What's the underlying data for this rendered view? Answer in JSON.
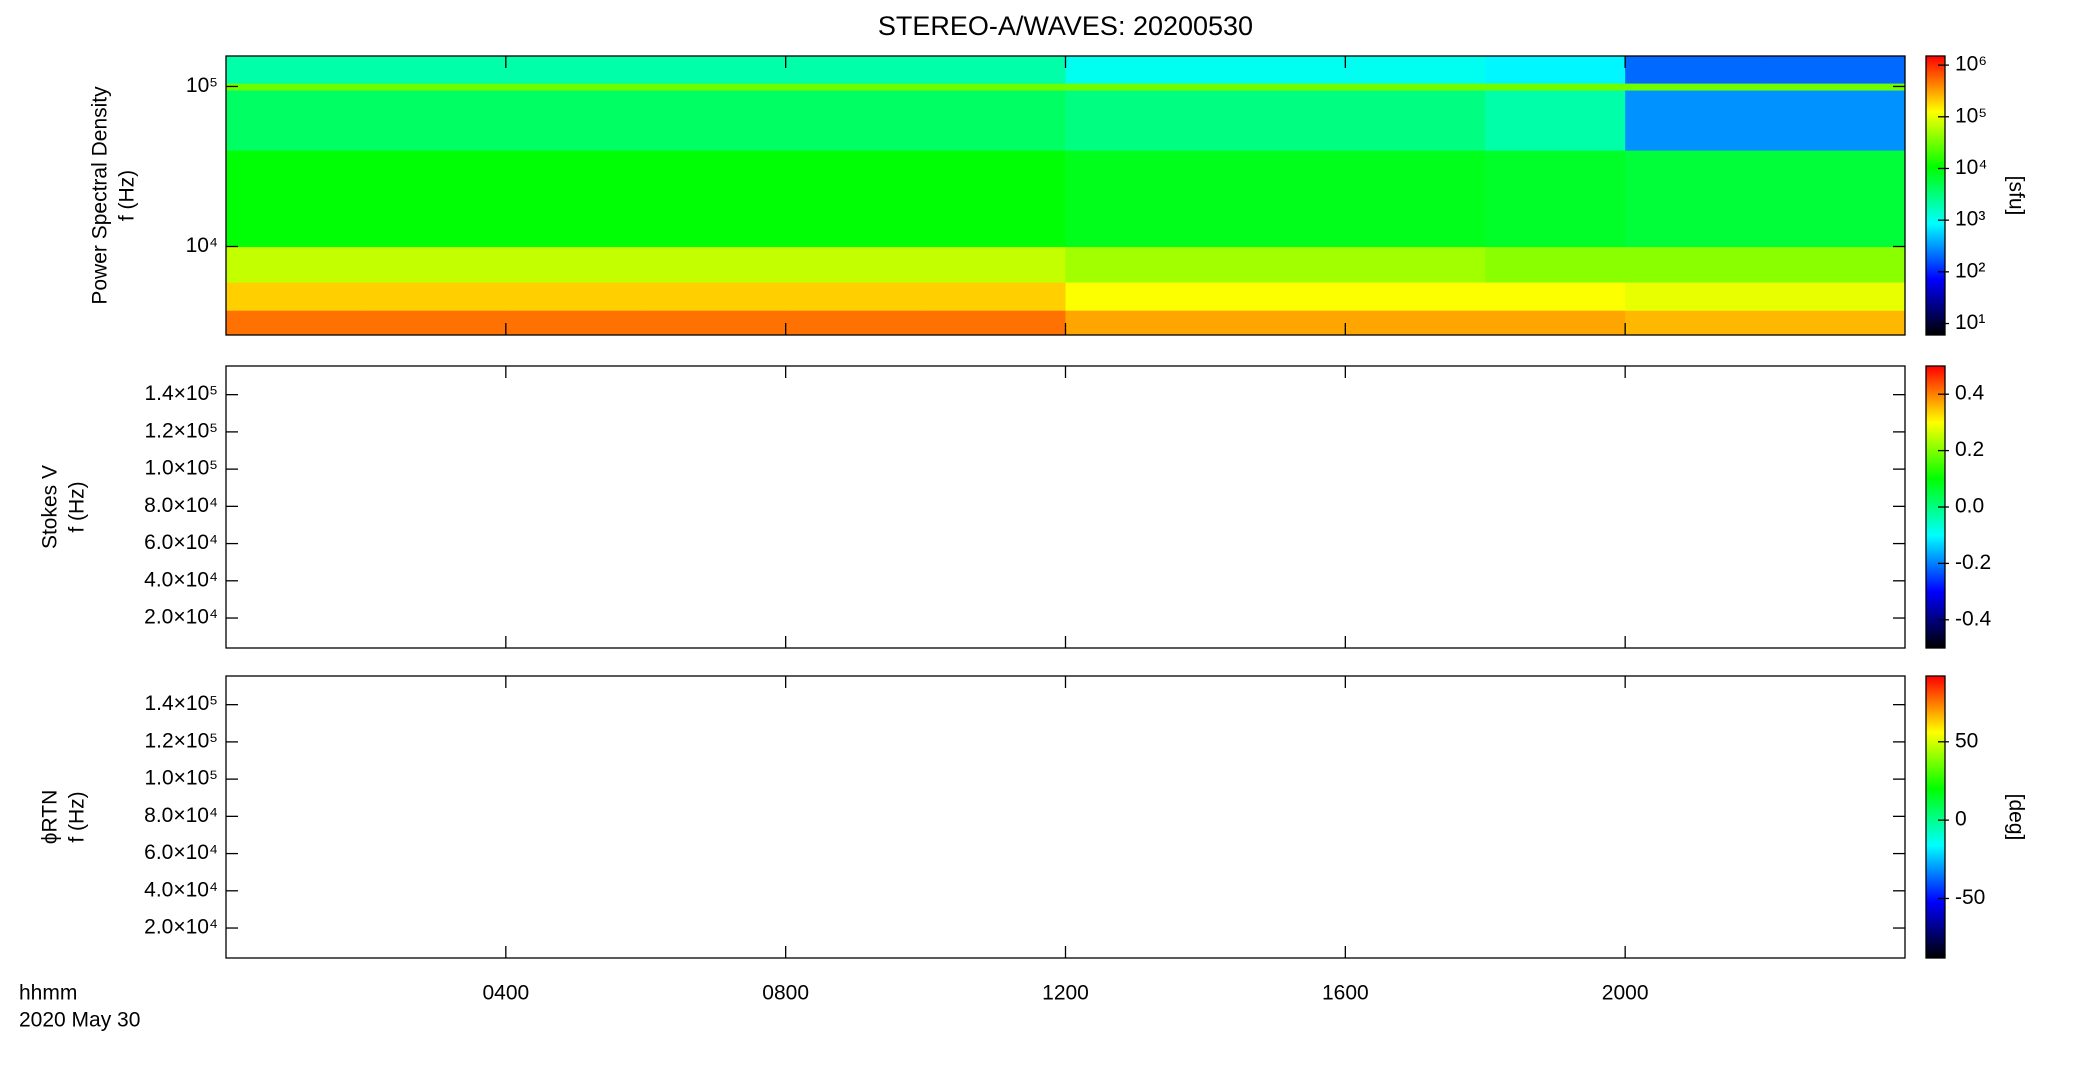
{
  "colormap": [
    "#000000",
    "#0000ff",
    "#00ffff",
    "#00ff00",
    "#ffff00",
    "#ff0000"
  ],
  "chart_data": [
    {
      "type": "heatmap",
      "title": "STEREO-A/WAVES: 20200530",
      "ylabel": [
        "Power Spectral Density",
        "f (Hz)"
      ],
      "x_edges": [
        0,
        2,
        4,
        6,
        8,
        10,
        12,
        14,
        16,
        18,
        20,
        22,
        24
      ],
      "y_edges": [
        2800,
        4000,
        6000,
        10000,
        40000,
        95000,
        105000,
        155000
      ],
      "z": [
        [
          500000,
          500000,
          500000,
          500000,
          500000,
          500000,
          300000,
          300000,
          300000,
          300000,
          250000,
          250000
        ],
        [
          200000,
          200000,
          200000,
          200000,
          200000,
          200000,
          120000,
          120000,
          120000,
          120000,
          100000,
          100000
        ],
        [
          70000,
          70000,
          70000,
          70000,
          70000,
          70000,
          50000,
          50000,
          50000,
          40000,
          40000,
          40000
        ],
        [
          10000,
          10000,
          10000,
          10000,
          10000,
          10000,
          8000,
          8000,
          8000,
          7000,
          6000,
          6000
        ],
        [
          4000,
          4000,
          4000,
          4000,
          4000,
          4000,
          3000,
          3000,
          3000,
          2000,
          300,
          300
        ],
        [
          30000,
          30000,
          30000,
          30000,
          30000,
          30000,
          30000,
          30000,
          30000,
          30000,
          30000,
          30000
        ],
        [
          2000,
          2000,
          2000,
          2000,
          2000,
          2000,
          1000,
          1000,
          1000,
          800,
          200,
          200
        ]
      ],
      "xlim": [
        0,
        24
      ],
      "xticks": [
        4,
        8,
        12,
        16,
        20
      ],
      "ylim": [
        2800,
        155000
      ],
      "ylog": true,
      "yticks": [
        {
          "value": 10000,
          "label": "10⁴"
        },
        {
          "value": 100000,
          "label": "10⁵"
        }
      ],
      "zlim": [
        6,
        1500000
      ],
      "zlog": true,
      "zlabel": "[sfu]",
      "zticks": [
        {
          "value": 10,
          "label": "10¹"
        },
        {
          "value": 100,
          "label": "10²"
        },
        {
          "value": 1000,
          "label": "10³"
        },
        {
          "value": 10000,
          "label": "10⁴"
        },
        {
          "value": 100000,
          "label": "10⁵"
        },
        {
          "value": 1000000,
          "label": "10⁶"
        }
      ]
    },
    {
      "type": "heatmap",
      "ylabel": [
        "Stokes V",
        "f (Hz)"
      ],
      "xlim": [
        0,
        24
      ],
      "xticks": [
        4,
        8,
        12,
        16,
        20
      ],
      "ylim": [
        3900,
        155400
      ],
      "ylog": false,
      "yticks": [
        {
          "value": 20000,
          "label": "2.0×10⁴"
        },
        {
          "value": 40000,
          "label": "4.0×10⁴"
        },
        {
          "value": 60000,
          "label": "6.0×10⁴"
        },
        {
          "value": 80000,
          "label": "8.0×10⁴"
        },
        {
          "value": 100000,
          "label": "1.0×10⁵"
        },
        {
          "value": 120000,
          "label": "1.2×10⁵"
        },
        {
          "value": 140000,
          "label": "1.4×10⁵"
        }
      ],
      "zlim": [
        -0.5,
        0.5
      ],
      "zlog": false,
      "zticks": [
        -0.4,
        -0.2,
        {
          "value": 0,
          "label": "0.0"
        },
        0.2,
        0.4
      ]
    },
    {
      "type": "heatmap",
      "ylabel": [
        "ϕRTN",
        "f (Hz)"
      ],
      "xlabel": [
        "hhmm",
        "2020 May 30"
      ],
      "xlim": [
        0,
        24
      ],
      "xticks": [
        {
          "value": 4,
          "label": "0400"
        },
        {
          "value": 8,
          "label": "0800"
        },
        {
          "value": 12,
          "label": "1200"
        },
        {
          "value": 16,
          "label": "1600"
        },
        {
          "value": 20,
          "label": "2000"
        }
      ],
      "ylim": [
        3900,
        155400
      ],
      "ylog": false,
      "yticks": [
        {
          "value": 20000,
          "label": "2.0×10⁴"
        },
        {
          "value": 40000,
          "label": "4.0×10⁴"
        },
        {
          "value": 60000,
          "label": "6.0×10⁴"
        },
        {
          "value": 80000,
          "label": "8.0×10⁴"
        },
        {
          "value": 100000,
          "label": "1.0×10⁵"
        },
        {
          "value": 120000,
          "label": "1.2×10⁵"
        },
        {
          "value": 140000,
          "label": "1.4×10⁵"
        }
      ],
      "zlim": [
        -88,
        92
      ],
      "zlog": false,
      "zlabel": "[deg]",
      "zticks": [
        -50,
        0,
        50
      ]
    }
  ]
}
